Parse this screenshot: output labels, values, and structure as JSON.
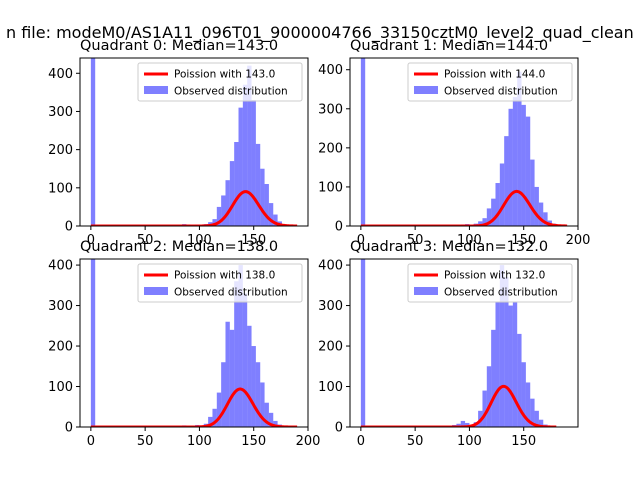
{
  "figure_title": "n file: modeM0/AS1A11_096T01_9000004766_33150cztM0_level2_quad_clean",
  "colors": {
    "fit": "#ff0000",
    "hist": "#0000ff",
    "hist_alpha": 0.5
  },
  "chart_data": [
    {
      "type": "histogram",
      "title": "Quadrant 0: Median=143.0",
      "median": 143.0,
      "xlim": [
        -10,
        200
      ],
      "ylim": [
        0,
        440
      ],
      "xticks": [
        0,
        50,
        100,
        150
      ],
      "yticks": [
        0,
        100,
        200,
        300,
        400
      ],
      "legend": {
        "location": "top-right",
        "entries": [
          "Poission with 143.0",
          "Observed distribution"
        ]
      },
      "series": [
        {
          "name": "Poission with 143.0",
          "kind": "line",
          "lambda": 143.0,
          "x_range": [
            0,
            190
          ]
        },
        {
          "name": "Observed distribution",
          "kind": "histogram",
          "bin_width": 4,
          "bins": [
            [
              0,
              440
            ],
            [
              84,
              5
            ],
            [
              88,
              4
            ],
            [
              96,
              4
            ],
            [
              104,
              5
            ],
            [
              108,
              10
            ],
            [
              112,
              18
            ],
            [
              116,
              50
            ],
            [
              120,
              80
            ],
            [
              124,
              120
            ],
            [
              128,
              170
            ],
            [
              132,
              220
            ],
            [
              136,
              310
            ],
            [
              140,
              370
            ],
            [
              144,
              420
            ],
            [
              148,
              330
            ],
            [
              152,
              215
            ],
            [
              156,
              150
            ],
            [
              160,
              110
            ],
            [
              164,
              60
            ],
            [
              168,
              30
            ],
            [
              172,
              12
            ],
            [
              176,
              5
            ],
            [
              180,
              2
            ]
          ]
        }
      ]
    },
    {
      "type": "histogram",
      "title": "Quadrant 1: Median=144.0",
      "median": 144.0,
      "xlim": [
        -10,
        200
      ],
      "ylim": [
        0,
        430
      ],
      "xticks": [
        0,
        50,
        100,
        150,
        200
      ],
      "yticks": [
        0,
        100,
        200,
        300,
        400
      ],
      "legend": {
        "location": "top-right",
        "entries": [
          "Poission with 144.0",
          "Observed distribution"
        ]
      },
      "series": [
        {
          "name": "Poission with 144.0",
          "kind": "line",
          "lambda": 144.0,
          "x_range": [
            0,
            190
          ]
        },
        {
          "name": "Observed distribution",
          "kind": "histogram",
          "bin_width": 4,
          "bins": [
            [
              0,
              430
            ],
            [
              92,
              4
            ],
            [
              96,
              5
            ],
            [
              104,
              6
            ],
            [
              108,
              12
            ],
            [
              112,
              20
            ],
            [
              116,
              45
            ],
            [
              120,
              70
            ],
            [
              124,
              110
            ],
            [
              128,
              160
            ],
            [
              132,
              230
            ],
            [
              136,
              300
            ],
            [
              140,
              330
            ],
            [
              144,
              395
            ],
            [
              148,
              310
            ],
            [
              152,
              280
            ],
            [
              156,
              170
            ],
            [
              160,
              100
            ],
            [
              164,
              60
            ],
            [
              168,
              35
            ],
            [
              172,
              14
            ],
            [
              176,
              6
            ],
            [
              180,
              2
            ]
          ]
        }
      ]
    },
    {
      "type": "histogram",
      "title": "Quadrant 2: Median=138.0",
      "median": 138.0,
      "xlim": [
        -10,
        200
      ],
      "ylim": [
        0,
        415
      ],
      "xticks": [
        0,
        50,
        100,
        150,
        200
      ],
      "yticks": [
        0,
        100,
        200,
        300,
        400
      ],
      "legend": {
        "location": "top-right",
        "entries": [
          "Poission with 138.0",
          "Observed distribution"
        ]
      },
      "series": [
        {
          "name": "Poission with 138.0",
          "kind": "line",
          "lambda": 138.0,
          "x_range": [
            0,
            190
          ]
        },
        {
          "name": "Observed distribution",
          "kind": "histogram",
          "bin_width": 4,
          "bins": [
            [
              0,
              415
            ],
            [
              84,
              4
            ],
            [
              88,
              3
            ],
            [
              96,
              5
            ],
            [
              104,
              8
            ],
            [
              108,
              25
            ],
            [
              112,
              45
            ],
            [
              116,
              85
            ],
            [
              120,
              160
            ],
            [
              124,
              260
            ],
            [
              128,
              240
            ],
            [
              132,
              360
            ],
            [
              136,
              400
            ],
            [
              140,
              330
            ],
            [
              144,
              250
            ],
            [
              148,
              200
            ],
            [
              152,
              160
            ],
            [
              156,
              110
            ],
            [
              160,
              60
            ],
            [
              164,
              35
            ],
            [
              168,
              15
            ],
            [
              172,
              6
            ],
            [
              176,
              2
            ]
          ]
        }
      ]
    },
    {
      "type": "histogram",
      "title": "Quadrant 3: Median=132.0",
      "median": 132.0,
      "xlim": [
        -10,
        200
      ],
      "ylim": [
        0,
        415
      ],
      "xticks": [
        0,
        50,
        100,
        150
      ],
      "yticks": [
        0,
        100,
        200,
        300,
        400
      ],
      "legend": {
        "location": "top-right",
        "entries": [
          "Poission with 132.0",
          "Observed distribution"
        ]
      },
      "series": [
        {
          "name": "Poission with 132.0",
          "kind": "line",
          "lambda": 132.0,
          "x_range": [
            0,
            180
          ]
        },
        {
          "name": "Observed distribution",
          "kind": "histogram",
          "bin_width": 4,
          "bins": [
            [
              0,
              415
            ],
            [
              84,
              5
            ],
            [
              88,
              8
            ],
            [
              92,
              15
            ],
            [
              96,
              10
            ],
            [
              104,
              12
            ],
            [
              108,
              40
            ],
            [
              112,
              90
            ],
            [
              116,
              150
            ],
            [
              120,
              240
            ],
            [
              124,
              310
            ],
            [
              128,
              400
            ],
            [
              132,
              370
            ],
            [
              136,
              300
            ],
            [
              140,
              310
            ],
            [
              144,
              230
            ],
            [
              148,
              160
            ],
            [
              152,
              110
            ],
            [
              156,
              70
            ],
            [
              160,
              40
            ],
            [
              164,
              18
            ],
            [
              168,
              6
            ]
          ]
        }
      ]
    }
  ]
}
